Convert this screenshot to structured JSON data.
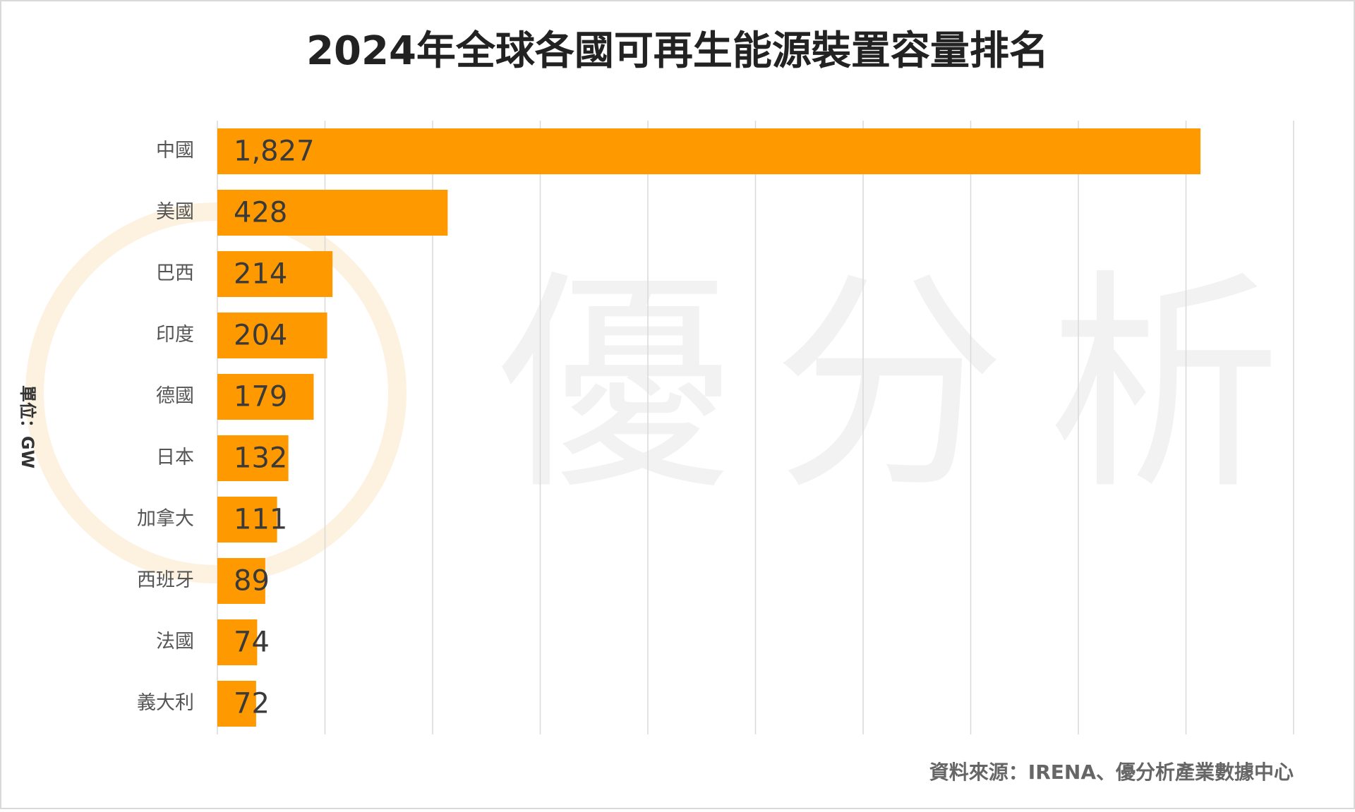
{
  "chart_data": {
    "type": "bar",
    "orientation": "horizontal",
    "title": "2024年全球各國可再生能源裝置容量排名",
    "y_label": "單位：GW",
    "source": "資料來源：IRENA、優分析產業數據中心",
    "watermark": "優分析",
    "categories": [
      "中國",
      "美國",
      "巴西",
      "印度",
      "德國",
      "日本",
      "加拿大",
      "西班牙",
      "法國",
      "義大利"
    ],
    "values": [
      1827,
      428,
      214,
      204,
      179,
      132,
      111,
      89,
      74,
      72
    ],
    "value_labels": [
      "1,827",
      "428",
      "214",
      "204",
      "179",
      "132",
      "111",
      "89",
      "74",
      "72"
    ],
    "color": "#ff9900",
    "xlim": [
      0,
      2000
    ],
    "xticks": [
      0,
      200,
      400,
      600,
      800,
      1000,
      1200,
      1400,
      1600,
      1800,
      2000
    ],
    "grid": true
  }
}
